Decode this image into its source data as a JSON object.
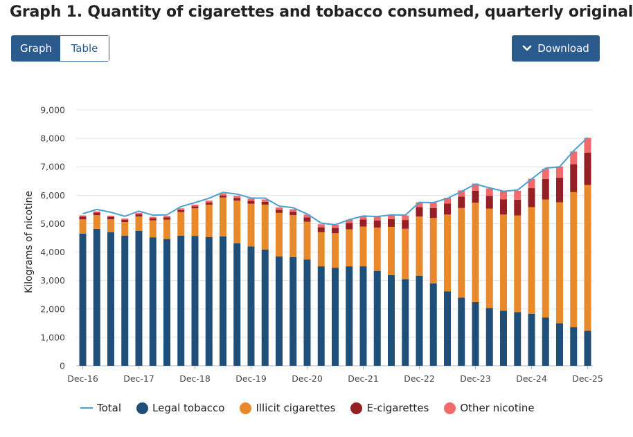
{
  "title": "Graph 1. Quantity of cigarettes and tobacco consumed, quarterly original",
  "tabs": [
    {
      "label": "Graph",
      "active": true
    },
    {
      "label": "Table",
      "active": false
    }
  ],
  "download": {
    "label": "Download",
    "icon": "chevron-down-icon"
  },
  "colors": {
    "accent": "#2b5a8e",
    "total": "#4aa0cf",
    "legal": "#1f4e79",
    "illicit": "#e8892b",
    "ecig": "#951f24",
    "other": "#f26a6a"
  },
  "chart_data": {
    "type": "bar",
    "stacked": true,
    "ylabel": "Kilograms of nicotine",
    "xlabel": "",
    "ylim": [
      0,
      9000
    ],
    "yticks": [
      "0",
      "1,000",
      "2,000",
      "3,000",
      "4,000",
      "5,000",
      "6,000",
      "7,000",
      "8,000",
      "9,000"
    ],
    "x_tick_labels": [
      "Dec-16",
      "Dec-17",
      "Dec-18",
      "Dec-19",
      "Dec-20",
      "Dec-21",
      "Dec-22",
      "Dec-23",
      "Dec-24",
      "Dec-25"
    ],
    "grid": true,
    "legend_position": "bottom",
    "categories": [
      "Dec-16",
      "Mar-17",
      "Jun-17",
      "Sep-17",
      "Dec-17",
      "Mar-18",
      "Jun-18",
      "Sep-18",
      "Dec-18",
      "Mar-19",
      "Jun-19",
      "Sep-19",
      "Dec-19",
      "Mar-20",
      "Jun-20",
      "Sep-20",
      "Dec-20",
      "Mar-21",
      "Jun-21",
      "Sep-21",
      "Dec-21",
      "Mar-22",
      "Jun-22",
      "Sep-22",
      "Dec-22",
      "Mar-23",
      "Jun-23",
      "Sep-23",
      "Dec-23",
      "Mar-24",
      "Jun-24",
      "Sep-24",
      "Dec-24",
      "Mar-25",
      "Jun-25",
      "Sep-25",
      "Dec-25"
    ],
    "series": [
      {
        "name": "Legal tobacco",
        "type": "bar",
        "color": "#1f4e79",
        "values": [
          4650,
          4820,
          4700,
          4580,
          4750,
          4520,
          4460,
          4580,
          4570,
          4530,
          4550,
          4310,
          4200,
          4090,
          3850,
          3820,
          3740,
          3500,
          3450,
          3500,
          3500,
          3340,
          3190,
          3040,
          3170,
          2900,
          2620,
          2400,
          2240,
          2030,
          1940,
          1890,
          1830,
          1700,
          1500,
          1360,
          1230
        ]
      },
      {
        "name": "Illicit cigarettes",
        "type": "bar",
        "color": "#e8892b",
        "values": [
          500,
          480,
          450,
          480,
          500,
          600,
          680,
          830,
          970,
          1140,
          1370,
          1500,
          1500,
          1580,
          1530,
          1480,
          1330,
          1200,
          1220,
          1300,
          1400,
          1520,
          1700,
          1780,
          2080,
          2300,
          2700,
          3150,
          3500,
          3500,
          3380,
          3400,
          3750,
          4150,
          4250,
          4750,
          5130
        ]
      },
      {
        "name": "E-cigarettes",
        "type": "bar",
        "color": "#951f24",
        "values": [
          100,
          90,
          90,
          80,
          80,
          70,
          80,
          70,
          70,
          70,
          70,
          90,
          100,
          100,
          110,
          120,
          150,
          170,
          180,
          220,
          250,
          250,
          270,
          310,
          330,
          350,
          390,
          400,
          420,
          450,
          530,
          550,
          670,
          720,
          870,
          980,
          1140
        ]
      },
      {
        "name": "Other nicotine",
        "type": "bar",
        "color": "#f26a6a",
        "values": [
          40,
          40,
          40,
          40,
          50,
          50,
          50,
          60,
          60,
          70,
          70,
          80,
          80,
          80,
          80,
          90,
          100,
          110,
          110,
          120,
          120,
          140,
          150,
          160,
          170,
          180,
          200,
          220,
          250,
          260,
          290,
          320,
          330,
          360,
          390,
          450,
          520
        ]
      },
      {
        "name": "Total",
        "type": "line",
        "color": "#4aa0cf",
        "values": [
          5350,
          5500,
          5400,
          5260,
          5440,
          5300,
          5310,
          5600,
          5740,
          5890,
          6100,
          6040,
          5900,
          5900,
          5620,
          5560,
          5340,
          5020,
          4960,
          5140,
          5270,
          5250,
          5310,
          5300,
          5750,
          5740,
          5890,
          6130,
          6390,
          6260,
          6140,
          6180,
          6570,
          6950,
          7000,
          7560,
          8030
        ]
      }
    ]
  },
  "legend": [
    {
      "name": "Total",
      "kind": "line",
      "color": "#4aa0cf"
    },
    {
      "name": "Legal tobacco",
      "kind": "dot",
      "color": "#1f4e79"
    },
    {
      "name": "Illicit cigarettes",
      "kind": "dot",
      "color": "#e8892b"
    },
    {
      "name": "E-cigarettes",
      "kind": "dot",
      "color": "#951f24"
    },
    {
      "name": "Other nicotine",
      "kind": "dot",
      "color": "#f26a6a"
    }
  ]
}
